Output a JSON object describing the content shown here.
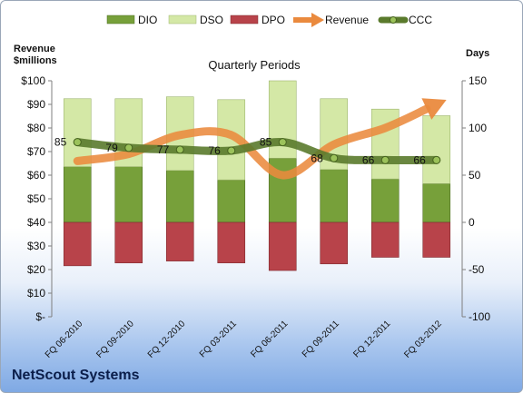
{
  "company": "NetScout Systems",
  "chart_data": {
    "type": "bar",
    "title": "Quarterly Periods",
    "left_axis_title": [
      "Revenue",
      "$millions"
    ],
    "right_axis_title": "Days",
    "categories": [
      "FQ 06-2010",
      "FQ 09-2010",
      "FQ 12-2010",
      "FQ 03-2011",
      "FQ 06-2011",
      "FQ 09-2011",
      "FQ 12-2011",
      "FQ 03-2012"
    ],
    "left_ticks": [
      "$-",
      "$10",
      "$20",
      "$30",
      "$40",
      "$50",
      "$60",
      "$70",
      "$80",
      "$90",
      "$100"
    ],
    "left_ylim": [
      0,
      100
    ],
    "right_ticks": [
      "-100",
      "-50",
      "0",
      "50",
      "100",
      "150"
    ],
    "right_ylim": [
      -100,
      150
    ],
    "legend_position": "top",
    "legend": [
      "DIO",
      "DSO",
      "DPO",
      "Revenue",
      "CCC"
    ],
    "series": [
      {
        "name": "DIO",
        "axis": "right",
        "kind": "bar",
        "color": "#77a03a",
        "values": [
          59,
          59,
          55,
          45,
          68,
          56,
          46,
          41
        ]
      },
      {
        "name": "DSO",
        "axis": "right",
        "kind": "bar",
        "color": "#d4e8a6",
        "values": [
          72,
          72,
          78,
          85,
          82,
          75,
          74,
          72
        ]
      },
      {
        "name": "DPO",
        "axis": "right",
        "kind": "bar",
        "color": "#b8434a",
        "values": [
          -46,
          -43,
          -41,
          -43,
          -51,
          -44,
          -37,
          -37
        ]
      },
      {
        "name": "Revenue",
        "axis": "left",
        "kind": "line",
        "color": "#ea8a3e",
        "values": [
          66,
          69,
          77,
          77,
          60,
          73,
          80,
          90
        ]
      },
      {
        "name": "CCC",
        "axis": "right",
        "kind": "line",
        "color": "#5a7a2c",
        "values": [
          85,
          79,
          77,
          76,
          85,
          68,
          66,
          66
        ],
        "labels": [
          "85",
          "79",
          "77",
          "76",
          "85",
          "68",
          "66",
          "66"
        ]
      }
    ]
  }
}
